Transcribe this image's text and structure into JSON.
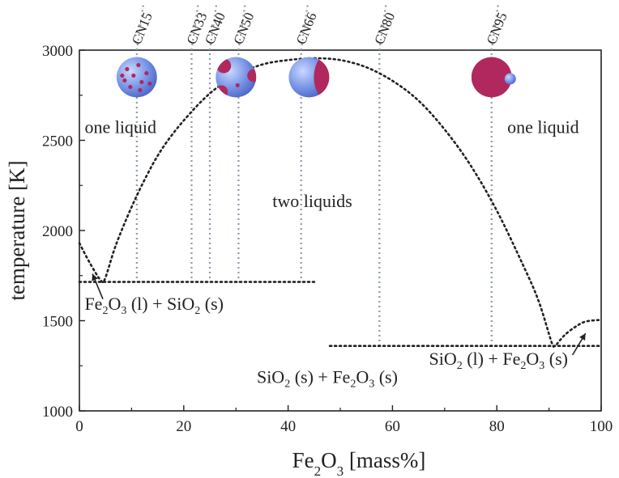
{
  "chart_data": {
    "type": "line",
    "xlabel_main": "Fe",
    "xlabel_sub": "2",
    "xlabel_main2": "O",
    "xlabel_sub2": "3",
    "xlabel_rest": " [mass%]",
    "ylabel": "temperature [K]",
    "xlim": [
      0,
      100
    ],
    "ylim": [
      1000,
      3000
    ],
    "x_ticks": [
      0,
      20,
      40,
      60,
      80,
      100
    ],
    "y_ticks": [
      1000,
      1500,
      2000,
      2500,
      3000
    ],
    "grid": false,
    "series": [
      {
        "kind": "dotted-curve",
        "points": [
          [
            0,
            1930
          ],
          [
            2,
            1820
          ],
          [
            4.2,
            1720
          ],
          [
            5,
            1740
          ],
          [
            7,
            1920
          ],
          [
            10,
            2130
          ],
          [
            13,
            2310
          ],
          [
            16,
            2460
          ],
          [
            20,
            2610
          ],
          [
            25,
            2760
          ],
          [
            30,
            2860
          ],
          [
            35,
            2920
          ],
          [
            40,
            2945
          ],
          [
            45,
            2955
          ],
          [
            50,
            2945
          ],
          [
            55,
            2905
          ],
          [
            60,
            2830
          ],
          [
            65,
            2720
          ],
          [
            70,
            2560
          ],
          [
            75,
            2360
          ],
          [
            80,
            2110
          ],
          [
            85,
            1810
          ],
          [
            88,
            1610
          ],
          [
            90.5,
            1380
          ],
          [
            91,
            1360
          ]
        ]
      },
      {
        "kind": "dotted-curve",
        "points": [
          [
            91.5,
            1370
          ],
          [
            93,
            1420
          ],
          [
            95,
            1465
          ],
          [
            97,
            1495
          ],
          [
            100,
            1505
          ]
        ]
      },
      {
        "kind": "dotted-line",
        "points": [
          [
            0,
            1715
          ],
          [
            45,
            1715
          ]
        ]
      },
      {
        "kind": "dotted-line",
        "points": [
          [
            48,
            1360
          ],
          [
            100,
            1360
          ]
        ]
      }
    ],
    "compositions": [
      {
        "label": "CN15",
        "x": 11,
        "y_bottom": 1715
      },
      {
        "label": "CN33",
        "x": 21.5,
        "y_bottom": 1715
      },
      {
        "label": "CN40",
        "x": 25,
        "y_bottom": 1715
      },
      {
        "label": "CN50",
        "x": 30.5,
        "y_bottom": 1715
      },
      {
        "label": "CN66",
        "x": 42.5,
        "y_bottom": 1715
      },
      {
        "label": "CN80",
        "x": 57.5,
        "y_bottom": 1360
      },
      {
        "label": "CN95",
        "x": 79,
        "y_bottom": 1360
      }
    ],
    "spheres": [
      {
        "x": 11,
        "y": 2850,
        "style": "dots"
      },
      {
        "x": 30,
        "y": 2850,
        "style": "blobs"
      },
      {
        "x": 44,
        "y": 2850,
        "style": "half"
      },
      {
        "x": 79,
        "y": 2850,
        "style": "mostly-red"
      }
    ],
    "annotations": [
      {
        "name": "one-liquid-left",
        "text": "one liquid",
        "x": 1,
        "y": 2540
      },
      {
        "name": "one-liquid-right",
        "text": "one liquid",
        "x": 82,
        "y": 2540
      },
      {
        "name": "two-liquids",
        "text": "two liquids",
        "x": 37,
        "y": 2130
      },
      {
        "name": "fe2o3-l-sio2-s",
        "parts": [
          "Fe",
          "2",
          "O",
          "3",
          " (l) + SiO",
          "2",
          " (s)"
        ],
        "x": 1,
        "y": 1560
      },
      {
        "name": "sio2-s-fe2o3-s",
        "parts": [
          "SiO",
          "2",
          " (s) + Fe",
          "2",
          "O",
          "3",
          " (s)"
        ],
        "x": 34,
        "y": 1155
      },
      {
        "name": "sio2-l-fe2o3-s",
        "parts": [
          "SiO",
          "2",
          " (l) + Fe",
          "2",
          "O",
          "3",
          " (s)"
        ],
        "x": 67,
        "y": 1255
      }
    ],
    "colors": {
      "axis": "#222222",
      "curve": "#222222",
      "guide": "#8a9aa8",
      "sphere_blue": "#6f8de0",
      "sphere_red": "#b0285e"
    }
  }
}
